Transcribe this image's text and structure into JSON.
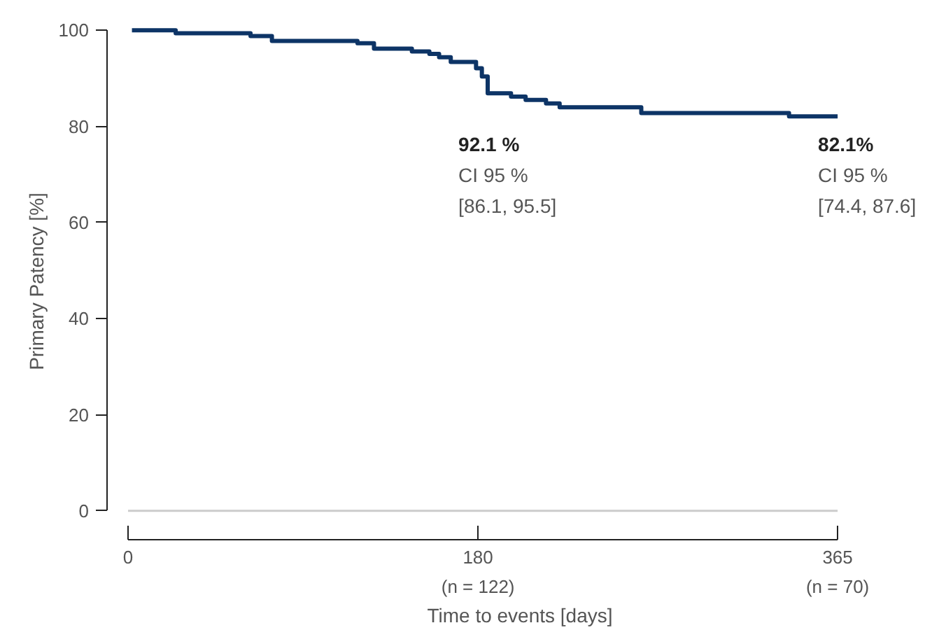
{
  "chart_data": {
    "type": "step",
    "xlabel": "Time to events [days]",
    "ylabel": "Primary Patency [%]",
    "x": [
      2,
      24.5,
      63,
      74,
      118,
      126.5,
      146,
      155,
      160,
      166,
      179,
      182,
      185,
      197,
      204.5,
      215,
      222,
      264,
      340,
      365
    ],
    "series": [
      {
        "color": "#0d3466",
        "values": [
          100,
          99.4,
          98.8,
          97.8,
          97.3,
          96.2,
          95.6,
          95.1,
          94.4,
          93.4,
          92.1,
          90.4,
          86.9,
          86.2,
          85.5,
          84.8,
          84.0,
          82.8,
          82.1,
          82.1
        ]
      }
    ],
    "xlim": [
      0,
      365
    ],
    "ylim": [
      0,
      100
    ],
    "xticks": [
      0,
      180,
      365
    ],
    "yticks": [
      0,
      20,
      40,
      60,
      80,
      100
    ],
    "ref_lines": [
      {
        "axis": "y",
        "value": 0,
        "color": "#cccccc"
      }
    ],
    "annotations": [
      "92.1 %\nCI 95 %\n[86.1, 95.5]",
      "82.1%\nCI 95 %\n[74.4, 87.6]",
      "(n = 122)",
      "(n = 70)"
    ],
    "grid": false,
    "line_style": "solid",
    "marker": "none"
  }
}
